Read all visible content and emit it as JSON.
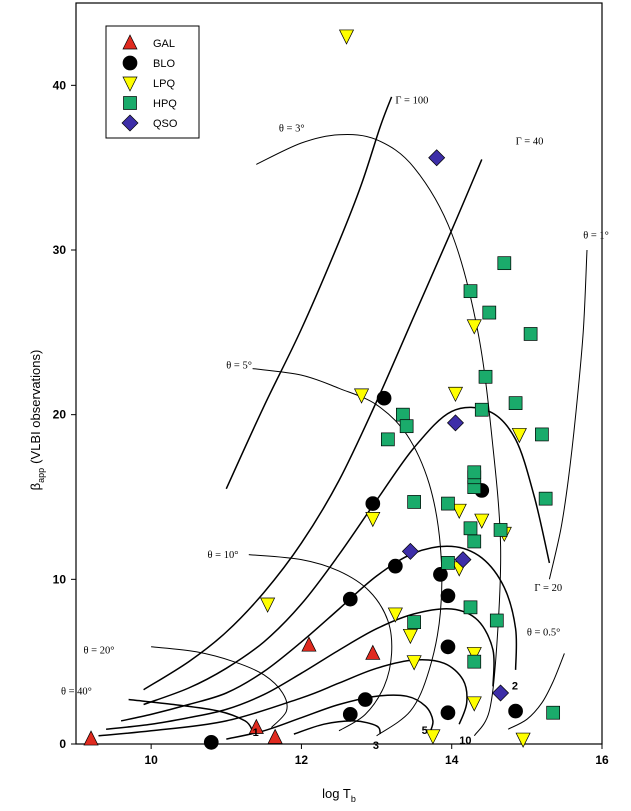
{
  "chart_data": {
    "type": "scatter",
    "title": "",
    "xlabel": "log T",
    "xlabel_sub": "b",
    "ylabel": "(VLBI observations)",
    "ylabel_symbol": "β",
    "ylabel_sub": "app",
    "xlim": [
      9,
      16
    ],
    "ylim": [
      0,
      45
    ],
    "xticks": [
      10,
      12,
      14,
      16
    ],
    "yticks": [
      0,
      10,
      20,
      30,
      40
    ],
    "legend": "top-left",
    "series": [
      {
        "name": "GAL",
        "marker": "triangle-up",
        "color": "#e02b20",
        "points": [
          [
            9.2,
            0.3
          ],
          [
            11.4,
            1.0
          ],
          [
            11.65,
            0.4
          ],
          [
            12.1,
            6.0
          ],
          [
            12.95,
            5.5
          ]
        ]
      },
      {
        "name": "BLO",
        "marker": "circle",
        "color": "#000000",
        "points": [
          [
            10.8,
            0.1
          ],
          [
            12.65,
            1.8
          ],
          [
            12.85,
            2.7
          ],
          [
            12.65,
            8.8
          ],
          [
            12.95,
            14.6
          ],
          [
            13.1,
            21.0
          ],
          [
            13.25,
            10.8
          ],
          [
            13.85,
            10.3
          ],
          [
            13.95,
            5.9
          ],
          [
            13.95,
            9.0
          ],
          [
            14.4,
            15.4
          ],
          [
            13.95,
            1.9
          ],
          [
            14.85,
            2.0
          ]
        ]
      },
      {
        "name": "LPQ",
        "marker": "triangle-down",
        "color": "#ffff00",
        "points": [
          [
            12.6,
            43.0
          ],
          [
            11.55,
            8.5
          ],
          [
            12.8,
            21.2
          ],
          [
            12.95,
            13.7
          ],
          [
            13.25,
            7.9
          ],
          [
            13.45,
            6.6
          ],
          [
            13.5,
            5.0
          ],
          [
            14.05,
            21.3
          ],
          [
            14.1,
            14.2
          ],
          [
            14.1,
            10.7
          ],
          [
            14.3,
            25.4
          ],
          [
            14.3,
            5.5
          ],
          [
            14.3,
            2.5
          ],
          [
            14.4,
            13.6
          ],
          [
            14.7,
            12.8
          ],
          [
            14.9,
            18.8
          ],
          [
            13.75,
            0.5
          ],
          [
            14.95,
            0.3
          ]
        ]
      },
      {
        "name": "HPQ",
        "marker": "square",
        "color": "#1aab6b",
        "points": [
          [
            13.15,
            18.5
          ],
          [
            13.35,
            20.0
          ],
          [
            13.4,
            19.3
          ],
          [
            13.5,
            14.7
          ],
          [
            13.5,
            7.4
          ],
          [
            13.95,
            14.6
          ],
          [
            13.95,
            11.0
          ],
          [
            14.25,
            27.5
          ],
          [
            14.25,
            13.1
          ],
          [
            14.25,
            8.3
          ],
          [
            14.3,
            15.6
          ],
          [
            14.3,
            16.2
          ],
          [
            14.3,
            16.5
          ],
          [
            14.3,
            12.3
          ],
          [
            14.3,
            5.0
          ],
          [
            14.4,
            20.3
          ],
          [
            14.45,
            22.3
          ],
          [
            14.5,
            26.2
          ],
          [
            14.6,
            7.5
          ],
          [
            14.65,
            13.0
          ],
          [
            14.7,
            29.2
          ],
          [
            14.85,
            20.7
          ],
          [
            15.05,
            24.9
          ],
          [
            15.2,
            18.8
          ],
          [
            15.25,
            14.9
          ],
          [
            15.35,
            1.9
          ]
        ]
      },
      {
        "name": "QSO",
        "marker": "diamond",
        "color": "#3d2ea8",
        "points": [
          [
            13.8,
            35.6
          ],
          [
            13.45,
            11.7
          ],
          [
            14.05,
            19.5
          ],
          [
            14.15,
            11.2
          ],
          [
            14.65,
            3.1
          ]
        ]
      }
    ],
    "annotations": [
      {
        "text": "Γ = 100",
        "x": 13.25,
        "y": 38.9
      },
      {
        "text": "θ = 3°",
        "x": 11.7,
        "y": 37.2
      },
      {
        "text": "Γ = 40",
        "x": 14.85,
        "y": 36.4
      },
      {
        "text": "θ = 1°",
        "x": 15.75,
        "y": 30.7
      },
      {
        "text": "θ = 5°",
        "x": 11.0,
        "y": 22.8
      },
      {
        "text": "θ = 10°",
        "x": 10.75,
        "y": 11.3
      },
      {
        "text": "Γ = 20",
        "x": 15.1,
        "y": 9.3
      },
      {
        "text": "θ = 0.5°",
        "x": 15.0,
        "y": 6.6
      },
      {
        "text": "θ = 20°",
        "x": 9.1,
        "y": 5.5
      },
      {
        "text": "θ = 40°",
        "x": 8.8,
        "y": 3.0
      },
      {
        "text": "1",
        "x": 11.35,
        "y": 0.5
      },
      {
        "text": "2",
        "x": 14.8,
        "y": 3.3
      },
      {
        "text": "3",
        "x": 12.95,
        "y": -0.3
      },
      {
        "text": "5",
        "x": 13.6,
        "y": 0.6
      },
      {
        "text": "10",
        "x": 14.1,
        "y": 0.0
      }
    ],
    "curves": [
      {
        "kind": "gamma",
        "points": [
          [
            11.0,
            15.5
          ],
          [
            11.5,
            20.5
          ],
          [
            12.0,
            25.2
          ],
          [
            12.5,
            30.5
          ],
          [
            12.8,
            34.0
          ],
          [
            13.05,
            37.5
          ],
          [
            13.2,
            39.3
          ]
        ]
      },
      {
        "kind": "gamma",
        "points": [
          [
            9.9,
            3.3
          ],
          [
            10.5,
            5.0
          ],
          [
            11.0,
            6.8
          ],
          [
            11.5,
            9.2
          ],
          [
            12.0,
            12.2
          ],
          [
            12.5,
            16.0
          ],
          [
            13.0,
            20.8
          ],
          [
            13.5,
            26.0
          ],
          [
            14.0,
            31.2
          ],
          [
            14.4,
            35.5
          ]
        ]
      },
      {
        "kind": "gamma",
        "points": [
          [
            9.9,
            2.4
          ],
          [
            10.5,
            3.4
          ],
          [
            11.0,
            4.6
          ],
          [
            11.5,
            6.2
          ],
          [
            12.0,
            8.5
          ],
          [
            12.5,
            11.5
          ],
          [
            13.0,
            14.8
          ],
          [
            13.5,
            18.0
          ],
          [
            14.0,
            20.2
          ],
          [
            14.5,
            20.2
          ],
          [
            14.85,
            18.5
          ],
          [
            15.1,
            15.0
          ],
          [
            15.3,
            11.0
          ]
        ]
      },
      {
        "kind": "gamma",
        "points": [
          [
            9.6,
            1.4
          ],
          [
            10.0,
            1.8
          ],
          [
            10.5,
            2.4
          ],
          [
            11.0,
            3.1
          ],
          [
            11.5,
            4.4
          ],
          [
            12.0,
            6.2
          ],
          [
            12.5,
            8.2
          ],
          [
            13.0,
            10.2
          ],
          [
            13.5,
            11.6
          ],
          [
            14.0,
            12.0
          ],
          [
            14.4,
            11.3
          ],
          [
            14.7,
            9.5
          ],
          [
            14.85,
            7.0
          ],
          [
            14.85,
            4.5
          ]
        ]
      },
      {
        "kind": "gamma",
        "points": [
          [
            9.4,
            0.9
          ],
          [
            10.0,
            1.2
          ],
          [
            10.5,
            1.6
          ],
          [
            11.0,
            2.1
          ],
          [
            11.5,
            3.0
          ],
          [
            12.0,
            4.3
          ],
          [
            12.5,
            5.7
          ],
          [
            13.0,
            7.0
          ],
          [
            13.5,
            7.9
          ],
          [
            14.0,
            8.2
          ],
          [
            14.35,
            7.5
          ],
          [
            14.55,
            5.7
          ],
          [
            14.55,
            3.5
          ]
        ]
      },
      {
        "kind": "gamma",
        "points": [
          [
            9.3,
            0.5
          ],
          [
            10.0,
            0.8
          ],
          [
            11.0,
            1.4
          ],
          [
            12.0,
            2.8
          ],
          [
            12.5,
            3.7
          ],
          [
            13.0,
            4.6
          ],
          [
            13.5,
            5.1
          ],
          [
            13.9,
            4.9
          ],
          [
            14.15,
            3.9
          ],
          [
            14.2,
            2.5
          ],
          [
            14.1,
            1.2
          ]
        ]
      },
      {
        "kind": "gamma",
        "points": [
          [
            11.0,
            0.3
          ],
          [
            11.5,
            0.8
          ],
          [
            12.0,
            1.6
          ],
          [
            12.5,
            2.4
          ],
          [
            13.0,
            2.9
          ],
          [
            13.4,
            2.9
          ],
          [
            13.65,
            2.3
          ],
          [
            13.75,
            1.4
          ],
          [
            13.7,
            0.6
          ]
        ]
      },
      {
        "kind": "gamma",
        "points": [
          [
            11.9,
            0.6
          ],
          [
            12.3,
            1.2
          ],
          [
            12.7,
            1.4
          ],
          [
            13.0,
            1.1
          ],
          [
            13.05,
            0.6
          ]
        ]
      },
      {
        "kind": "gamma",
        "points": [
          [
            9.7,
            2.7
          ],
          [
            10.3,
            2.4
          ],
          [
            10.9,
            2.0
          ],
          [
            11.25,
            1.4
          ],
          [
            11.35,
            0.8
          ]
        ]
      },
      {
        "kind": "theta",
        "points": [
          [
            11.4,
            35.2
          ],
          [
            12.0,
            36.5
          ],
          [
            12.5,
            37.0
          ],
          [
            13.0,
            36.7
          ],
          [
            13.5,
            35.0
          ],
          [
            14.0,
            31.0
          ],
          [
            14.35,
            25.0
          ],
          [
            14.55,
            18.0
          ],
          [
            14.65,
            12.0
          ],
          [
            14.6,
            6.0
          ],
          [
            14.5,
            2.0
          ],
          [
            14.3,
            0.5
          ]
        ]
      },
      {
        "kind": "theta",
        "points": [
          [
            11.35,
            22.8
          ],
          [
            12.0,
            22.4
          ],
          [
            12.5,
            21.6
          ],
          [
            13.0,
            20.6
          ],
          [
            13.4,
            18.8
          ],
          [
            13.7,
            15.8
          ],
          [
            13.85,
            12.0
          ],
          [
            13.85,
            8.0
          ],
          [
            13.7,
            4.5
          ],
          [
            13.45,
            2.0
          ],
          [
            13.0,
            0.5
          ]
        ]
      },
      {
        "kind": "theta",
        "points": [
          [
            11.3,
            11.5
          ],
          [
            12.0,
            11.2
          ],
          [
            12.5,
            10.5
          ],
          [
            12.9,
            9.3
          ],
          [
            13.15,
            7.5
          ],
          [
            13.2,
            5.5
          ],
          [
            13.1,
            3.5
          ],
          [
            12.85,
            1.8
          ],
          [
            12.5,
            0.8
          ]
        ]
      },
      {
        "kind": "theta",
        "points": [
          [
            10.0,
            5.9
          ],
          [
            10.6,
            5.6
          ],
          [
            11.1,
            5.0
          ],
          [
            11.5,
            4.2
          ],
          [
            11.75,
            3.1
          ],
          [
            11.8,
            2.0
          ],
          [
            11.6,
            1.0
          ]
        ]
      },
      {
        "kind": "theta",
        "points": [
          [
            14.75,
            0.9
          ],
          [
            15.0,
            1.5
          ],
          [
            15.2,
            2.5
          ],
          [
            15.35,
            3.8
          ],
          [
            15.5,
            5.5
          ]
        ]
      },
      {
        "kind": "theta",
        "points": [
          [
            15.3,
            10.0
          ],
          [
            15.45,
            13.0
          ],
          [
            15.55,
            16.0
          ],
          [
            15.65,
            20.0
          ],
          [
            15.75,
            25.0
          ],
          [
            15.8,
            30.0
          ]
        ]
      }
    ]
  }
}
